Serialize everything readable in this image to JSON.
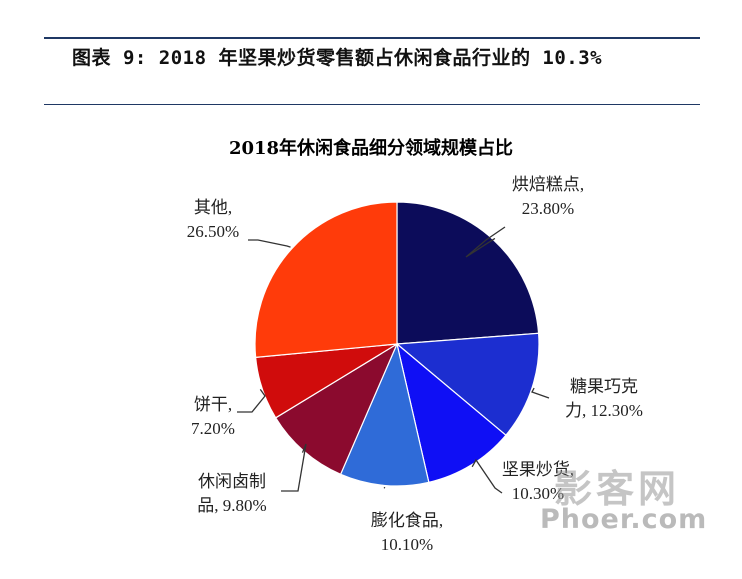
{
  "figure": {
    "title": "图表 9: 2018 年坚果炒货零售额占休闲食品行业的 10.3%"
  },
  "chart_data": {
    "type": "pie",
    "title": "2018年休闲食品细分领域规模占比",
    "categories": [
      "烘焙糕点",
      "糖果巧克力",
      "坚果炒货",
      "膨化食品",
      "休闲卤制品",
      "饼干",
      "其他"
    ],
    "values": [
      23.8,
      12.3,
      10.3,
      10.1,
      9.8,
      7.2,
      26.5
    ],
    "labels": [
      [
        "烘焙糕点,",
        "23.80%"
      ],
      [
        "糖果巧克",
        "力, 12.30%"
      ],
      [
        "坚果炒货,",
        "10.30%"
      ],
      [
        "膨化食品,",
        "10.10%"
      ],
      [
        "休闲卤制",
        "品, 9.80%"
      ],
      [
        "饼干,",
        "7.20%"
      ],
      [
        "其他,",
        "26.50%"
      ]
    ],
    "colors": [
      "#0c0c5a",
      "#1c2ed0",
      "#0f0ff5",
      "#2f6bd8",
      "#8b0a2e",
      "#d00c0c",
      "#ff3b0a"
    ],
    "start": "top, clockwise"
  },
  "watermark": {
    "brand": "影客网",
    "url": "Phoer.com"
  }
}
